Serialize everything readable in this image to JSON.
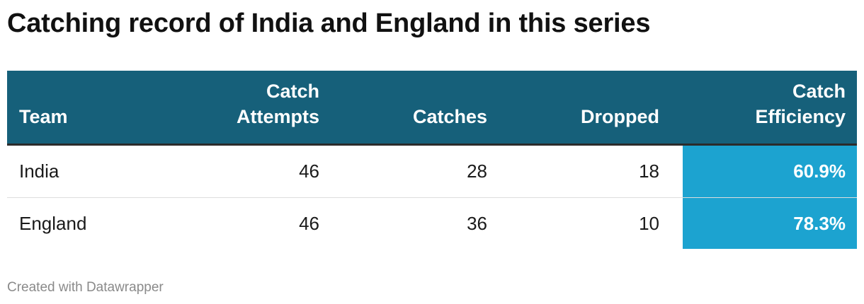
{
  "title": "Catching record of India and England in this series",
  "columns": {
    "team": "Team",
    "attempts_l1": "Catch",
    "attempts_l2": "Attempts",
    "catches": "Catches",
    "dropped": "Dropped",
    "efficiency_l1": "Catch",
    "efficiency_l2": "Efficiency"
  },
  "colors": {
    "header_bg": "#16607a",
    "efficiency_india": "#1ca3d0",
    "efficiency_england": "#1ca3d0"
  },
  "chart_data": {
    "type": "table",
    "columns": [
      "Team",
      "Catch Attempts",
      "Catches",
      "Dropped",
      "Catch Efficiency"
    ],
    "rows": [
      {
        "team": "India",
        "attempts": "46",
        "catches": "28",
        "dropped": "18",
        "efficiency": "60.9%"
      },
      {
        "team": "England",
        "attempts": "46",
        "catches": "36",
        "dropped": "10",
        "efficiency": "78.3%"
      }
    ]
  },
  "footer": "Created with Datawrapper"
}
